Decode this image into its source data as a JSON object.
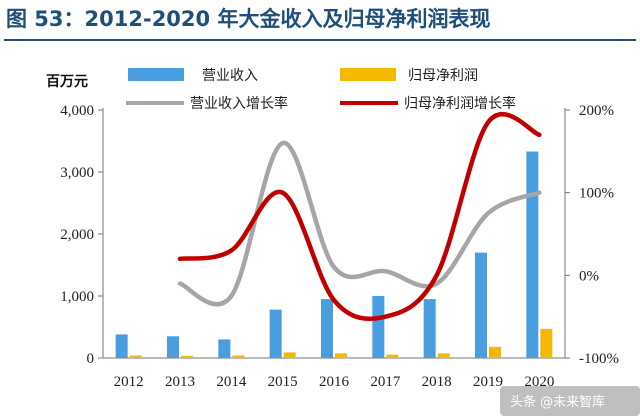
{
  "chart_data": {
    "type": "bar",
    "title": "图 53：2012-2020 年大金收入及归母净利润表现",
    "y_unit_label": "百万元",
    "categories": [
      "2012",
      "2013",
      "2014",
      "2015",
      "2016",
      "2017",
      "2018",
      "2019",
      "2020"
    ],
    "series": [
      {
        "name": "营业收入",
        "type": "bar",
        "axis": "left",
        "color": "#4a9ee0",
        "values": [
          380,
          350,
          300,
          780,
          950,
          1000,
          950,
          1700,
          3330
        ]
      },
      {
        "name": "归母净利润",
        "type": "bar",
        "axis": "left",
        "color": "#f5b800",
        "values": [
          40,
          35,
          40,
          90,
          75,
          55,
          75,
          180,
          470
        ]
      },
      {
        "name": "营业收入增长率",
        "type": "line",
        "axis": "right",
        "color": "#a6a6a6",
        "values": [
          null,
          -10,
          -25,
          160,
          10,
          5,
          -10,
          75,
          100
        ]
      },
      {
        "name": "归母净利润增长率",
        "type": "line",
        "axis": "right",
        "color": "#c00000",
        "values": [
          null,
          20,
          30,
          100,
          -30,
          -50,
          0,
          185,
          170
        ]
      }
    ],
    "ylim_left": [
      0,
      4000
    ],
    "left_ticks": [
      "0",
      "1,000",
      "2,000",
      "3,000",
      "4,000"
    ],
    "ylim_right": [
      -100,
      200
    ],
    "right_ticks": [
      "-100%",
      "0%",
      "100%",
      "200%"
    ],
    "grid": false,
    "legend_position": "top"
  },
  "watermark": "头条 @未来智库"
}
